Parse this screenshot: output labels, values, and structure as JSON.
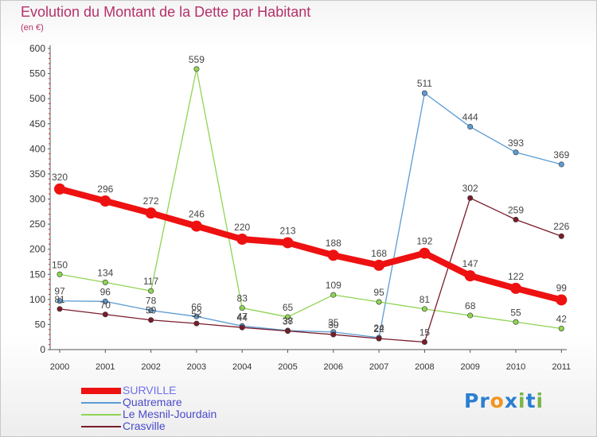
{
  "title": "Evolution du Montant de la Dette par Habitant",
  "subtitle": "(en €)",
  "brand": {
    "letters": [
      {
        "ch": "P",
        "color": "#2b7fd1"
      },
      {
        "ch": "r",
        "color": "#2b7fd1"
      },
      {
        "ch": "o",
        "color": "#f19420"
      },
      {
        "ch": "x",
        "color": "#2b7fd1"
      },
      {
        "ch": "i",
        "color": "#7ab648"
      },
      {
        "ch": "t",
        "color": "#2b7fd1"
      },
      {
        "ch": "i",
        "color": "#7ab648"
      }
    ]
  },
  "chart_data": {
    "type": "line",
    "title": "Evolution du Montant de la Dette par Habitant",
    "subtitle": "(en €)",
    "xlabel": "",
    "ylabel": "",
    "x": [
      "2000",
      "2001",
      "2002",
      "2003",
      "2004",
      "2005",
      "2006",
      "2007",
      "2008",
      "2009",
      "2010",
      "2011"
    ],
    "ylim": [
      0,
      600
    ],
    "yticks": [
      0,
      50,
      100,
      150,
      200,
      250,
      300,
      350,
      400,
      450,
      500,
      550,
      600
    ],
    "grid": false,
    "legend_position": "bottom-left",
    "series": [
      {
        "name": "SURVILLE",
        "color": "#ee1111",
        "emphasis": true,
        "values": [
          320,
          296,
          272,
          246,
          220,
          213,
          188,
          168,
          192,
          147,
          122,
          99
        ]
      },
      {
        "name": "Quatremare",
        "color": "#5b9bd5",
        "emphasis": false,
        "values": [
          97,
          96,
          78,
          66,
          47,
          38,
          35,
          24,
          511,
          444,
          393,
          369
        ]
      },
      {
        "name": "Le Mesnil-Jourdain",
        "color": "#8fd454",
        "emphasis": false,
        "values": [
          150,
          134,
          117,
          559,
          83,
          65,
          109,
          95,
          81,
          68,
          55,
          42
        ]
      },
      {
        "name": "Crasville",
        "color": "#7a1c2a",
        "emphasis": false,
        "values": [
          81,
          70,
          59,
          52,
          44,
          37,
          30,
          22,
          15,
          302,
          259,
          226
        ]
      }
    ]
  }
}
